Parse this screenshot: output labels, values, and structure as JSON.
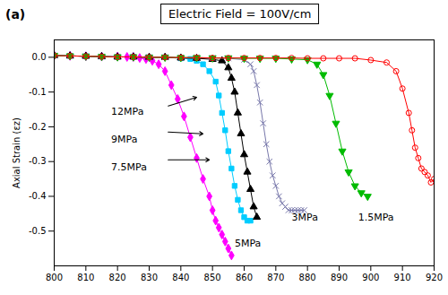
{
  "chart_data": {
    "type": "line",
    "title": "Electric Field = 100V/cm",
    "panel_label": "(a)",
    "ylabel": "Axial Strain (εz)",
    "xlim": [
      800,
      920
    ],
    "ylim": [
      -0.6,
      0.05
    ],
    "xticks": [
      800,
      810,
      820,
      830,
      840,
      850,
      860,
      870,
      880,
      890,
      900,
      910,
      920
    ],
    "yticks": [
      {
        "value": 0,
        "label": "0.0"
      },
      -0.1,
      -0.2,
      -0.3,
      -0.4,
      -0.5
    ],
    "grid": false,
    "series": [
      {
        "name": "12MPa",
        "color": "#FF00FF",
        "marker": "diamond",
        "x": [
          800,
          805,
          810,
          815,
          820,
          823,
          825,
          827,
          829,
          831,
          833,
          835,
          837,
          839,
          841,
          843,
          845,
          847,
          849,
          850,
          851,
          852,
          853,
          854,
          855,
          856
        ],
        "values": [
          0.005,
          0.004,
          0.003,
          0.002,
          0.002,
          0.001,
          0.001,
          -0.002,
          -0.005,
          -0.01,
          -0.02,
          -0.04,
          -0.08,
          -0.12,
          -0.17,
          -0.23,
          -0.29,
          -0.35,
          -0.4,
          -0.44,
          -0.47,
          -0.49,
          -0.51,
          -0.53,
          -0.55,
          -0.57
        ]
      },
      {
        "name": "9MPa",
        "color": "#00CCFF",
        "marker": "square",
        "x": [
          800,
          805,
          810,
          815,
          820,
          825,
          830,
          835,
          840,
          843,
          845,
          847,
          849,
          851,
          852,
          853,
          854,
          855,
          856,
          857,
          858,
          859,
          860,
          861,
          862
        ],
        "values": [
          0.005,
          0.004,
          0.003,
          0.002,
          0.001,
          0.001,
          0.0,
          0.0,
          -0.003,
          -0.005,
          -0.01,
          -0.02,
          -0.04,
          -0.07,
          -0.11,
          -0.16,
          -0.21,
          -0.27,
          -0.32,
          -0.37,
          -0.41,
          -0.44,
          -0.46,
          -0.47,
          -0.47
        ]
      },
      {
        "name": "7.5MPa",
        "color": "#000000",
        "marker": "triangle",
        "x": [
          800,
          805,
          810,
          815,
          820,
          825,
          830,
          835,
          840,
          845,
          850,
          853,
          855,
          856,
          857,
          858,
          859,
          860,
          861,
          862,
          863,
          864
        ],
        "values": [
          0.005,
          0.004,
          0.003,
          0.002,
          0.001,
          0.001,
          0.0,
          0.0,
          -0.002,
          -0.003,
          -0.006,
          -0.01,
          -0.03,
          -0.06,
          -0.1,
          -0.16,
          -0.22,
          -0.28,
          -0.33,
          -0.38,
          -0.43,
          -0.46
        ]
      },
      {
        "name": "5MPa",
        "color": "#7777AA",
        "marker": "x",
        "x": [
          800,
          805,
          810,
          815,
          820,
          825,
          830,
          835,
          840,
          845,
          850,
          855,
          860,
          862,
          863,
          864,
          865,
          866,
          867,
          868,
          869,
          870,
          871,
          872,
          873,
          874,
          875,
          876,
          877,
          878,
          879
        ],
        "values": [
          0.005,
          0.004,
          0.003,
          0.002,
          0.001,
          0.001,
          0.0,
          0.0,
          -0.001,
          -0.001,
          -0.002,
          -0.003,
          -0.007,
          -0.02,
          -0.04,
          -0.08,
          -0.13,
          -0.19,
          -0.25,
          -0.3,
          -0.34,
          -0.37,
          -0.4,
          -0.42,
          -0.43,
          -0.44,
          -0.44,
          -0.44,
          -0.44,
          -0.44,
          -0.44
        ]
      },
      {
        "name": "3MPa",
        "color": "#00BB00",
        "marker": "triangle_down",
        "x": [
          800,
          805,
          810,
          815,
          820,
          825,
          830,
          835,
          840,
          845,
          850,
          855,
          860,
          865,
          870,
          875,
          880,
          883,
          885,
          887,
          889,
          891,
          893,
          895,
          897,
          899
        ],
        "values": [
          0.005,
          0.004,
          0.003,
          0.002,
          0.001,
          0.001,
          0.0,
          0.0,
          -0.001,
          -0.001,
          -0.002,
          -0.002,
          -0.003,
          -0.003,
          -0.003,
          -0.005,
          -0.007,
          -0.02,
          -0.05,
          -0.11,
          -0.19,
          -0.27,
          -0.33,
          -0.37,
          -0.39,
          -0.4
        ]
      },
      {
        "name": "1.5MPa",
        "color": "#FF0000",
        "marker": "open_circle",
        "x": [
          800,
          805,
          810,
          815,
          820,
          825,
          830,
          835,
          840,
          845,
          850,
          855,
          860,
          865,
          870,
          875,
          880,
          885,
          890,
          895,
          900,
          905,
          908,
          910,
          912,
          913,
          914,
          915,
          916,
          917,
          918,
          919,
          920
        ],
        "values": [
          0.005,
          0.004,
          0.003,
          0.002,
          0.001,
          0.001,
          0.0,
          0.0,
          -0.001,
          -0.001,
          -0.002,
          -0.002,
          -0.002,
          -0.002,
          -0.002,
          -0.002,
          -0.003,
          -0.003,
          -0.003,
          -0.003,
          -0.008,
          -0.015,
          -0.04,
          -0.09,
          -0.16,
          -0.21,
          -0.26,
          -0.29,
          -0.32,
          -0.33,
          -0.34,
          -0.36,
          -0.35
        ]
      }
    ],
    "annotations": [
      {
        "text": "12MPa",
        "x": 818,
        "y": -0.155
      },
      {
        "text": "9MPa",
        "x": 818,
        "y": -0.235
      },
      {
        "text": "7.5MPa",
        "x": 818,
        "y": -0.315
      },
      {
        "text": "5MPa",
        "x": 857,
        "y": -0.535
      },
      {
        "text": "3MPa",
        "x": 875,
        "y": -0.46
      },
      {
        "text": "1.5MPa",
        "x": 896,
        "y": -0.46
      }
    ],
    "arrows": [
      {
        "x1": 836,
        "y1": -0.14,
        "x2": 845,
        "y2": -0.115
      },
      {
        "x1": 836,
        "y1": -0.215,
        "x2": 847,
        "y2": -0.22
      },
      {
        "x1": 836,
        "y1": -0.295,
        "x2": 849,
        "y2": -0.295
      }
    ]
  }
}
